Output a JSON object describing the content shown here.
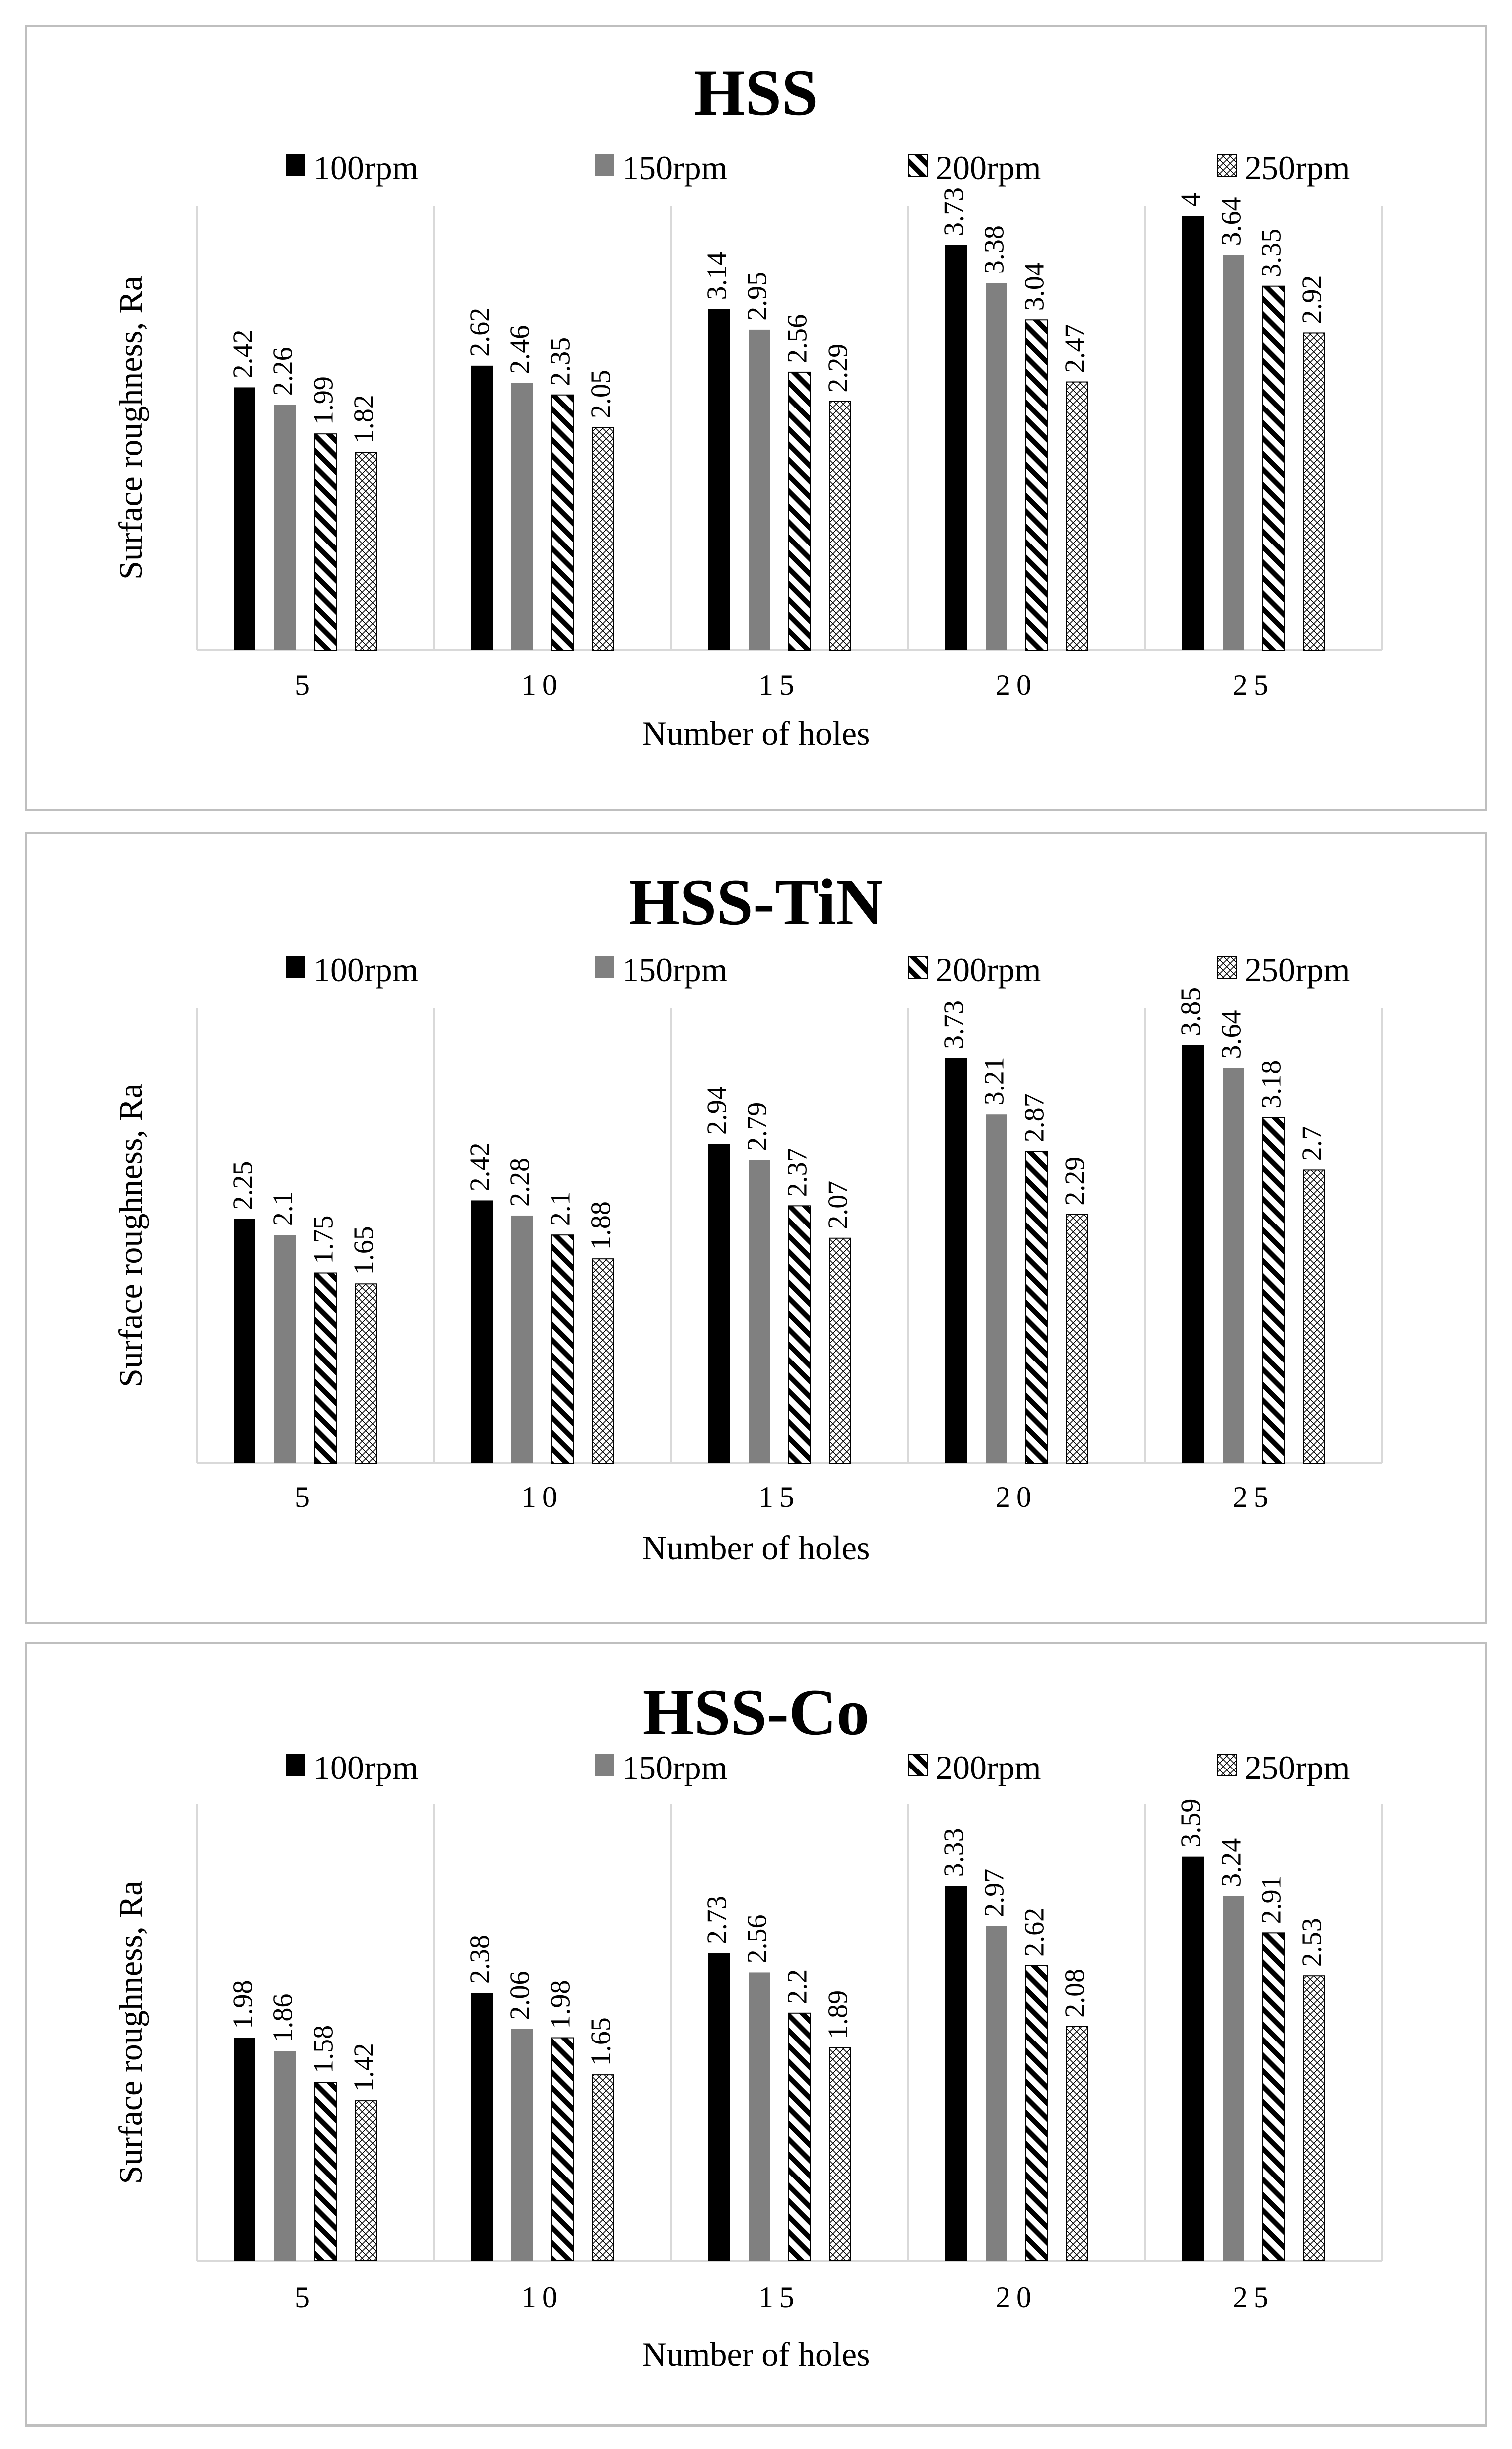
{
  "legend": [
    "100rpm",
    "150rpm",
    "200rpm",
    "250rpm"
  ],
  "chart_data": [
    {
      "type": "bar",
      "title": "HSS",
      "xlabel": "Number of holes",
      "ylabel": "Surface roughness, Ra",
      "categories": [
        "5",
        "10",
        "15",
        "20",
        "25"
      ],
      "ylim": [
        0,
        4.5
      ],
      "grid": false,
      "legend_position": "top",
      "series": [
        {
          "name": "100rpm",
          "values": [
            2.42,
            2.62,
            3.14,
            3.73,
            4
          ]
        },
        {
          "name": "150rpm",
          "values": [
            2.26,
            2.46,
            2.95,
            3.38,
            3.64
          ]
        },
        {
          "name": "200rpm",
          "values": [
            1.99,
            2.35,
            2.56,
            3.04,
            3.35
          ]
        },
        {
          "name": "250rpm",
          "values": [
            1.82,
            2.05,
            2.29,
            2.47,
            2.92
          ]
        }
      ]
    },
    {
      "type": "bar",
      "title": "HSS-TiN",
      "xlabel": "Number of holes",
      "ylabel": "Surface roughness, Ra",
      "categories": [
        "5",
        "10",
        "15",
        "20",
        "25"
      ],
      "ylim": [
        0,
        4.5
      ],
      "grid": false,
      "legend_position": "top",
      "series": [
        {
          "name": "100rpm",
          "values": [
            2.25,
            2.42,
            2.94,
            3.73,
            3.85
          ]
        },
        {
          "name": "150rpm",
          "values": [
            2.1,
            2.28,
            2.79,
            3.21,
            3.64
          ]
        },
        {
          "name": "200rpm",
          "values": [
            1.75,
            2.1,
            2.37,
            2.87,
            3.18
          ]
        },
        {
          "name": "250rpm",
          "values": [
            1.65,
            1.88,
            2.07,
            2.29,
            2.7
          ]
        }
      ]
    },
    {
      "type": "bar",
      "title": "HSS-Co",
      "xlabel": "Number of holes",
      "ylabel": "Surface roughness, Ra",
      "categories": [
        "5",
        "10",
        "15",
        "20",
        "25"
      ],
      "ylim": [
        0,
        4.5
      ],
      "grid": false,
      "legend_position": "top",
      "series": [
        {
          "name": "100rpm",
          "values": [
            1.98,
            2.38,
            2.73,
            3.33,
            3.59
          ]
        },
        {
          "name": "150rpm",
          "values": [
            1.86,
            2.06,
            2.56,
            2.97,
            3.24
          ]
        },
        {
          "name": "200rpm",
          "values": [
            1.58,
            1.98,
            2.2,
            2.62,
            2.91
          ]
        },
        {
          "name": "250rpm",
          "values": [
            1.42,
            1.65,
            1.89,
            2.08,
            2.53
          ]
        }
      ]
    }
  ]
}
